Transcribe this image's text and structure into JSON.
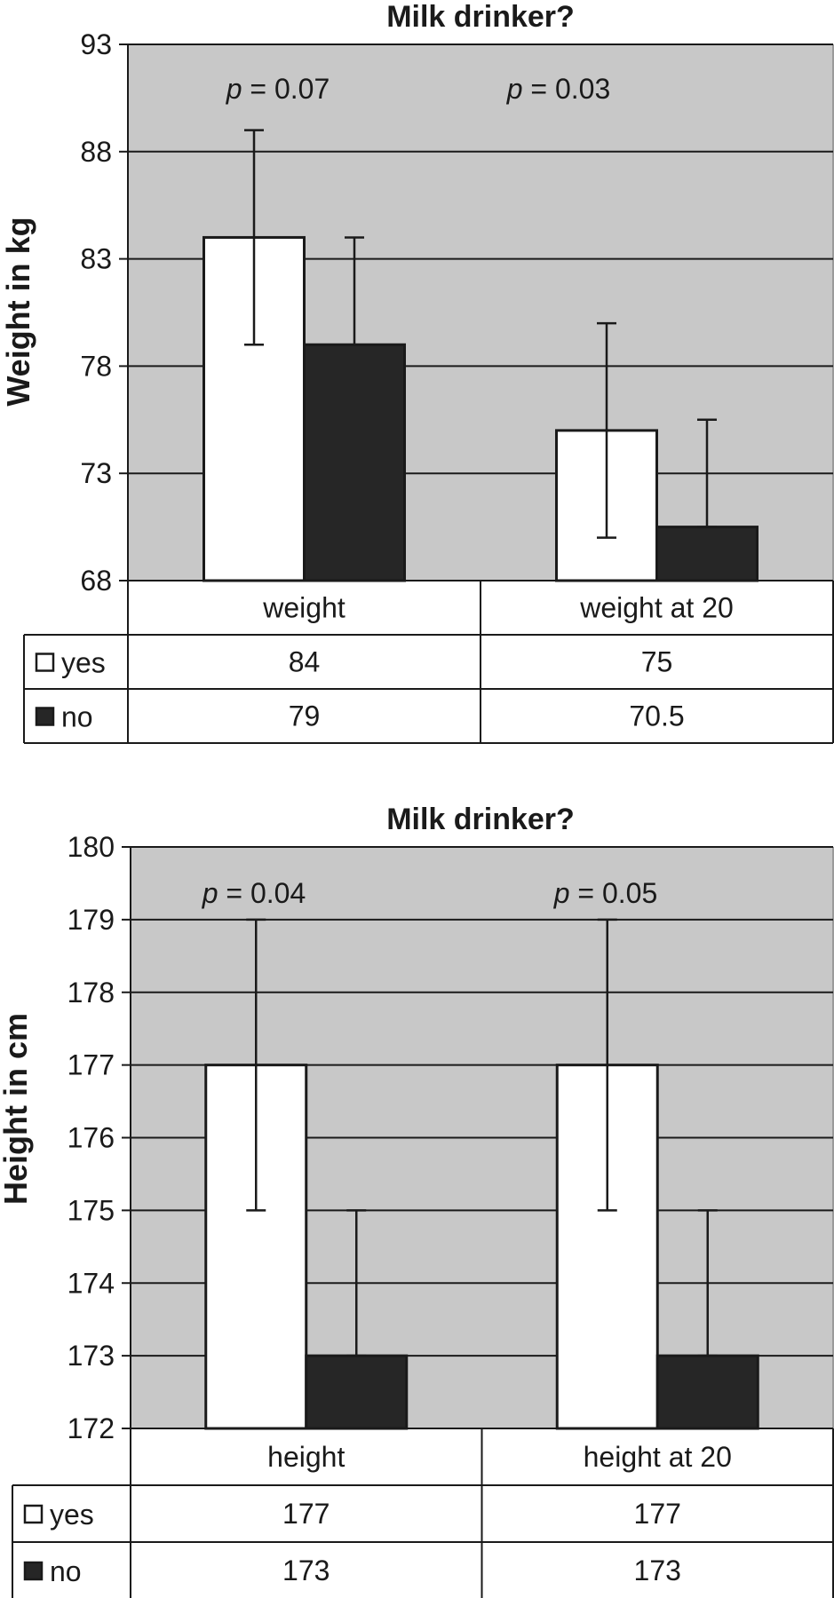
{
  "chart_data": [
    {
      "type": "bar",
      "title": "Milk drinker?",
      "ylabel": "Weight in kg",
      "ylim": [
        68,
        93
      ],
      "yticks": [
        "68",
        "73",
        "78",
        "83",
        "88",
        "93"
      ],
      "grid": true,
      "categories": [
        "weight",
        "weight at 20"
      ],
      "series": [
        {
          "name": "yes",
          "color": "#ffffff",
          "values": [
            84,
            75
          ],
          "labels": [
            "84",
            "75"
          ],
          "error_low": [
            79,
            70
          ],
          "error_high": [
            89,
            80
          ]
        },
        {
          "name": "no",
          "color": "#262626",
          "values": [
            79,
            70.5
          ],
          "labels": [
            "79",
            "70.5"
          ],
          "error_low": [
            79,
            70.5
          ],
          "error_high": [
            84,
            75.5
          ]
        }
      ],
      "annotations": [
        "p = 0.07",
        "p = 0.03"
      ],
      "legend": "data table below plot"
    },
    {
      "type": "bar",
      "title": "Milk drinker?",
      "ylabel": "Height in cm",
      "ylim": [
        172,
        180
      ],
      "yticks": [
        "172",
        "173",
        "174",
        "175",
        "176",
        "177",
        "178",
        "179",
        "180"
      ],
      "grid": true,
      "categories": [
        "height",
        "height at 20"
      ],
      "series": [
        {
          "name": "yes",
          "color": "#ffffff",
          "values": [
            177,
            177
          ],
          "labels": [
            "177",
            "177"
          ],
          "error_low": [
            175,
            175
          ],
          "error_high": [
            179,
            179
          ]
        },
        {
          "name": "no",
          "color": "#262626",
          "values": [
            173,
            173
          ],
          "labels": [
            "173",
            "173"
          ],
          "error_low": [
            173,
            173
          ],
          "error_high": [
            175,
            175
          ]
        }
      ],
      "annotations": [
        "p = 0.04",
        "p = 0.05"
      ],
      "legend": "data table below plot"
    }
  ]
}
